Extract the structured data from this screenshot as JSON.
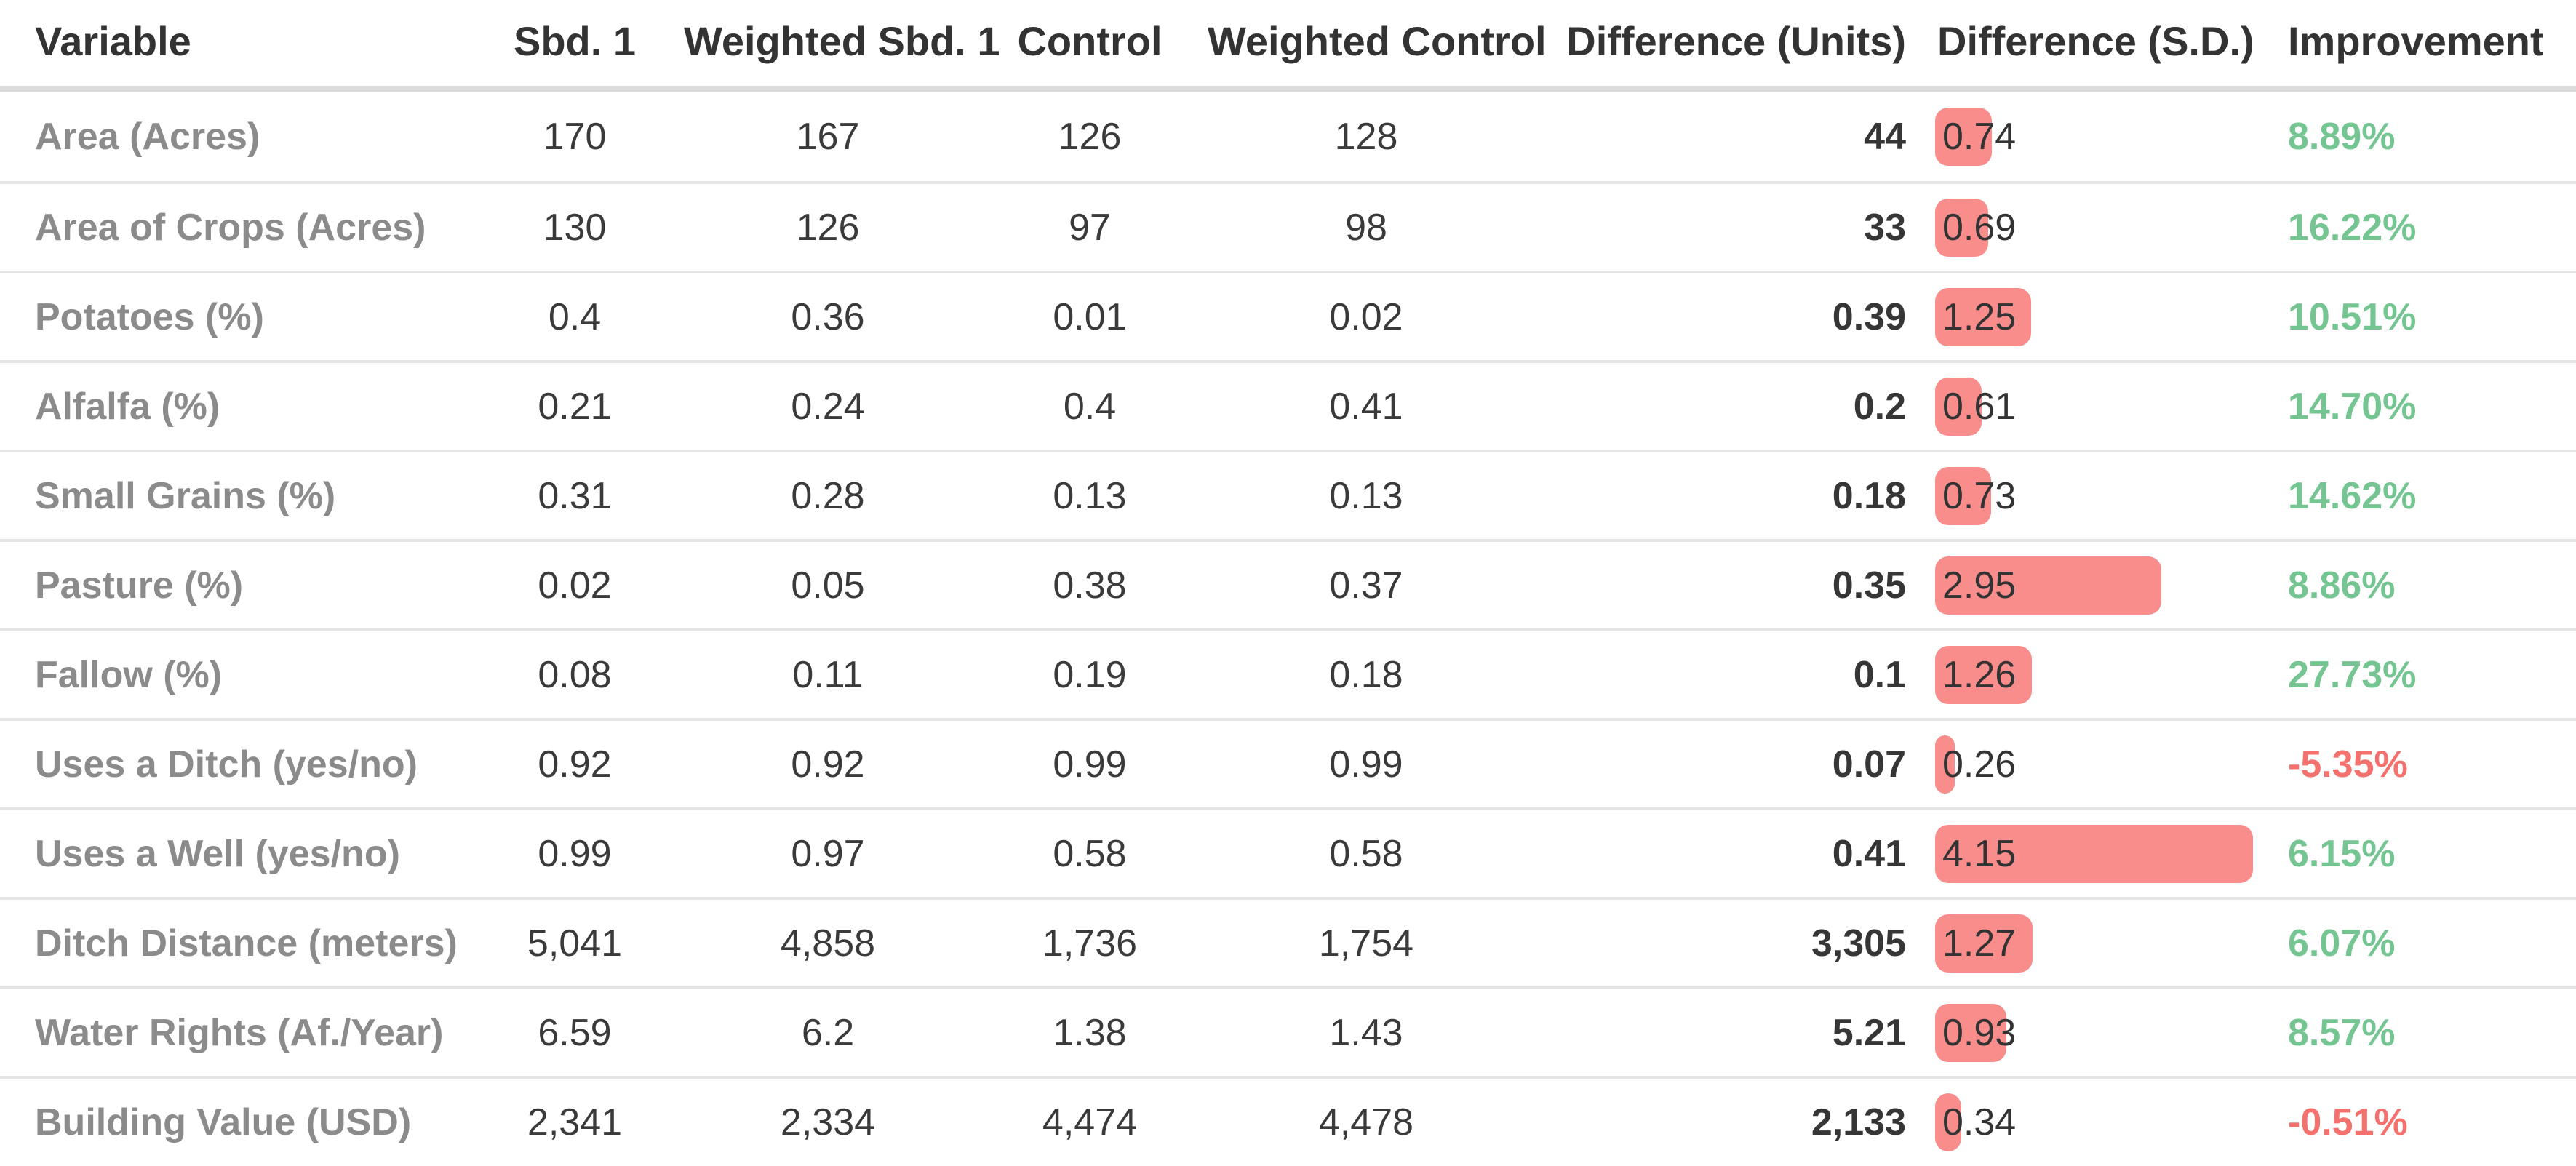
{
  "colors": {
    "sd_bar": "#f88d8c",
    "improvement_positive": "#74c591",
    "improvement_negative": "#f5716d",
    "header_text": "#333333",
    "row_label_text": "#8b8b8b",
    "value_text": "#3a3a3a",
    "separator": "#e5e5e5",
    "header_separator": "#dbdbdb"
  },
  "chart_data": {
    "type": "table",
    "title": "Covariate balance table with difference (S.D.) data bars",
    "legend_position": "none",
    "grid": "horizontal-separators",
    "columns": [
      {
        "label": "Variable"
      },
      {
        "label": "Sbd. 1"
      },
      {
        "label": "Weighted Sbd. 1"
      },
      {
        "label": "Control"
      },
      {
        "label": "Weighted Control"
      },
      {
        "label": "Difference (Units)"
      },
      {
        "label": "Difference (S.D.)"
      },
      {
        "label": "Improvement"
      }
    ],
    "sd_bar_range": [
      0,
      4.15
    ],
    "rows": [
      {
        "cells": [
          "Area (Acres)",
          "170",
          "167",
          "126",
          "128",
          "44",
          "0.74",
          "8.89%"
        ],
        "sd": 0.74
      },
      {
        "cells": [
          "Area of Crops (Acres)",
          "130",
          "126",
          "97",
          "98",
          "33",
          "0.69",
          "16.22%"
        ],
        "sd": 0.69
      },
      {
        "cells": [
          "Potatoes (%)",
          "0.4",
          "0.36",
          "0.01",
          "0.02",
          "0.39",
          "1.25",
          "10.51%"
        ],
        "sd": 1.25
      },
      {
        "cells": [
          "Alfalfa (%)",
          "0.21",
          "0.24",
          "0.4",
          "0.41",
          "0.2",
          "0.61",
          "14.70%"
        ],
        "sd": 0.61
      },
      {
        "cells": [
          "Small Grains (%)",
          "0.31",
          "0.28",
          "0.13",
          "0.13",
          "0.18",
          "0.73",
          "14.62%"
        ],
        "sd": 0.73
      },
      {
        "cells": [
          "Pasture (%)",
          "0.02",
          "0.05",
          "0.38",
          "0.37",
          "0.35",
          "2.95",
          "8.86%"
        ],
        "sd": 2.95
      },
      {
        "cells": [
          "Fallow (%)",
          "0.08",
          "0.11",
          "0.19",
          "0.18",
          "0.1",
          "1.26",
          "27.73%"
        ],
        "sd": 1.26
      },
      {
        "cells": [
          "Uses a Ditch (yes/no)",
          "0.92",
          "0.92",
          "0.99",
          "0.99",
          "0.07",
          "0.26",
          "-5.35%"
        ],
        "sd": 0.26
      },
      {
        "cells": [
          "Uses a Well (yes/no)",
          "0.99",
          "0.97",
          "0.58",
          "0.58",
          "0.41",
          "4.15",
          "6.15%"
        ],
        "sd": 4.15
      },
      {
        "cells": [
          "Ditch Distance (meters)",
          "5,041",
          "4,858",
          "1,736",
          "1,754",
          "3,305",
          "1.27",
          "6.07%"
        ],
        "sd": 1.27
      },
      {
        "cells": [
          "Water Rights (Af./Year)",
          "6.59",
          "6.2",
          "1.38",
          "1.43",
          "5.21",
          "0.93",
          "8.57%"
        ],
        "sd": 0.93
      },
      {
        "cells": [
          "Building Value (USD)",
          "2,341",
          "2,334",
          "4,474",
          "4,478",
          "2,133",
          "0.34",
          "-0.51%"
        ],
        "sd": 0.34
      }
    ]
  }
}
